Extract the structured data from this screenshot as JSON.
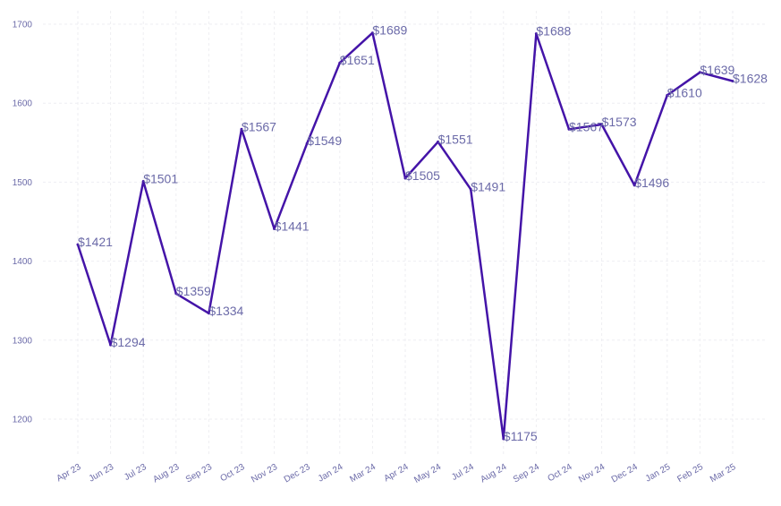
{
  "chart_data": {
    "type": "line",
    "title": "",
    "xlabel": "",
    "ylabel": "",
    "categories": [
      "Apr 23",
      "Jun 23",
      "Jul 23",
      "Aug 23",
      "Sep 23",
      "Oct 23",
      "Nov 23",
      "Dec 23",
      "Jan 24",
      "Mar 24",
      "Apr 24",
      "May 24",
      "Jul 24",
      "Aug 24",
      "Sep 24",
      "Oct 24",
      "Nov 24",
      "Dec 24",
      "Jan 25",
      "Feb 25",
      "Mar 25"
    ],
    "series": [
      {
        "name": "Price",
        "values": [
          1421,
          1294,
          1501,
          1359,
          1334,
          1567,
          1441,
          1549,
          1651,
          1689,
          1505,
          1551,
          1491,
          1175,
          1688,
          1567,
          1573,
          1496,
          1610,
          1639,
          1628
        ],
        "data_labels": [
          "$1421",
          "$1294",
          "$1501",
          "$1359",
          "$1334",
          "$1567",
          "$1441",
          "$1549",
          "$1651",
          "$1689",
          "$1505",
          "$1551",
          "$1491",
          "$1175",
          "$1688",
          "$1567",
          "$1573",
          "$1496",
          "$1610",
          "$1639",
          "$1628"
        ]
      }
    ],
    "y_ticks": [
      1200,
      1300,
      1400,
      1500,
      1600,
      1700
    ],
    "y_tick_labels": [
      "1200",
      "1300",
      "1400",
      "1500",
      "1600",
      "1700"
    ],
    "ylim": [
      1150,
      1715
    ],
    "grid": true,
    "legend": "none",
    "colors": {
      "line": "#4414a8",
      "label": "#6b6aa8",
      "grid": "#eeeef2"
    }
  }
}
